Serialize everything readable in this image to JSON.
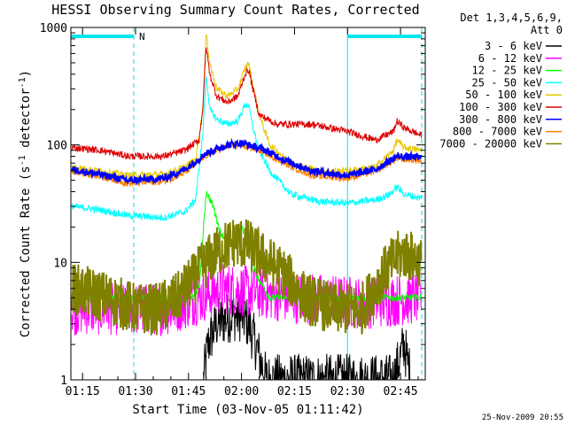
{
  "chart_data": {
    "type": "line",
    "title": "HESSI Observing Summary Count Rates, Corrected",
    "xlabel": "Start Time (03-Nov-05 01:11:42)",
    "ylabel_main": "Corrected Count Rate (s",
    "ylabel_sup1": "-1",
    "ylabel_mid": " detector",
    "ylabel_sup2": "-1",
    "ylabel_end": ")",
    "y_scale": "log",
    "ylim": [
      1,
      1000
    ],
    "xlim_minutes": [
      71.7,
      172
    ],
    "x_ticks": [
      {
        "m": 75,
        "label": "01:15"
      },
      {
        "m": 90,
        "label": "01:30"
      },
      {
        "m": 105,
        "label": "01:45"
      },
      {
        "m": 120,
        "label": "02:00"
      },
      {
        "m": 135,
        "label": "02:15"
      },
      {
        "m": 150,
        "label": "02:30"
      },
      {
        "m": 165,
        "label": "02:45"
      }
    ],
    "y_ticks": [
      {
        "v": 1,
        "label": "1"
      },
      {
        "v": 10,
        "label": "10"
      },
      {
        "v": 100,
        "label": "100"
      },
      {
        "v": 1000,
        "label": "1000"
      }
    ],
    "legend_header": [
      "Det 1,3,4,5,6,9,",
      "Att 0"
    ],
    "legend_placement": "right",
    "timestamp": "25-Nov-2009 20:55",
    "bar_marker": "N",
    "night_intervals": [
      [
        71.7,
        89.5
      ],
      [
        150.0,
        171.0
      ]
    ],
    "series": [
      {
        "name": "3 - 6 keV",
        "color": "#000000",
        "points": [
          [
            109.2,
            1
          ],
          [
            110.5,
            2
          ],
          [
            113,
            3
          ],
          [
            117,
            3.5
          ],
          [
            120,
            3.5
          ],
          [
            122,
            3
          ],
          [
            124,
            2
          ],
          [
            127,
            1
          ],
          [
            163,
            1
          ],
          [
            166,
            2
          ],
          [
            168,
            1
          ]
        ]
      },
      {
        "name": "6 - 12 keV",
        "color": "#ff00ff",
        "points": [
          [
            72,
            4
          ],
          [
            90,
            4
          ],
          [
            100,
            4
          ],
          [
            108,
            5
          ],
          [
            115,
            6
          ],
          [
            125,
            5.5
          ],
          [
            135,
            5
          ],
          [
            155,
            4.5
          ],
          [
            171,
            5
          ]
        ]
      },
      {
        "name": "12 - 25 keV",
        "color": "#00ff00",
        "points": [
          [
            72,
            5
          ],
          [
            90,
            5
          ],
          [
            100,
            5
          ],
          [
            106,
            5
          ],
          [
            108,
            6
          ],
          [
            110,
            40
          ],
          [
            112,
            30
          ],
          [
            114,
            18
          ],
          [
            117,
            14
          ],
          [
            120,
            20
          ],
          [
            122,
            16
          ],
          [
            124,
            8
          ],
          [
            128,
            5
          ],
          [
            150,
            5
          ],
          [
            171,
            5
          ]
        ]
      },
      {
        "name": "25 - 50 keV",
        "color": "#00ffff",
        "points": [
          [
            72,
            30
          ],
          [
            80,
            28
          ],
          [
            88,
            25
          ],
          [
            98,
            24
          ],
          [
            104,
            27
          ],
          [
            107,
            34
          ],
          [
            109,
            120
          ],
          [
            110,
            400
          ],
          [
            111,
            200
          ],
          [
            113,
            165
          ],
          [
            116,
            150
          ],
          [
            119,
            160
          ],
          [
            121,
            220
          ],
          [
            122,
            220
          ],
          [
            123,
            150
          ],
          [
            125,
            90
          ],
          [
            128,
            60
          ],
          [
            134,
            38
          ],
          [
            142,
            33
          ],
          [
            150,
            32
          ],
          [
            158,
            34
          ],
          [
            162,
            38
          ],
          [
            164,
            44
          ],
          [
            166,
            38
          ],
          [
            171,
            35
          ]
        ]
      },
      {
        "name": "50 - 100 keV",
        "color": "#e8c800",
        "points": [
          [
            72,
            65
          ],
          [
            80,
            60
          ],
          [
            88,
            55
          ],
          [
            98,
            56
          ],
          [
            104,
            65
          ],
          [
            107,
            75
          ],
          [
            109,
            200
          ],
          [
            110,
            900
          ],
          [
            111,
            500
          ],
          [
            113,
            300
          ],
          [
            116,
            260
          ],
          [
            119,
            300
          ],
          [
            121,
            450
          ],
          [
            122,
            500
          ],
          [
            123,
            350
          ],
          [
            125,
            180
          ],
          [
            128,
            100
          ],
          [
            134,
            70
          ],
          [
            142,
            60
          ],
          [
            150,
            60
          ],
          [
            158,
            65
          ],
          [
            163,
            90
          ],
          [
            164,
            110
          ],
          [
            166,
            95
          ],
          [
            171,
            90
          ]
        ]
      },
      {
        "name": "100 - 300 keV",
        "color": "#dd0000",
        "points": [
          [
            72,
            95
          ],
          [
            80,
            90
          ],
          [
            88,
            80
          ],
          [
            98,
            80
          ],
          [
            104,
            90
          ],
          [
            108,
            110
          ],
          [
            109,
            200
          ],
          [
            110,
            700
          ],
          [
            111,
            400
          ],
          [
            113,
            260
          ],
          [
            116,
            230
          ],
          [
            119,
            260
          ],
          [
            121,
            400
          ],
          [
            122,
            440
          ],
          [
            123,
            320
          ],
          [
            125,
            180
          ],
          [
            130,
            150
          ],
          [
            140,
            150
          ],
          [
            150,
            130
          ],
          [
            158,
            110
          ],
          [
            163,
            130
          ],
          [
            164,
            160
          ],
          [
            166,
            140
          ],
          [
            171,
            120
          ]
        ]
      },
      {
        "name": "300 - 800 keV",
        "color": "#0000ff",
        "points": [
          [
            72,
            62
          ],
          [
            80,
            56
          ],
          [
            88,
            50
          ],
          [
            98,
            52
          ],
          [
            104,
            62
          ],
          [
            110,
            85
          ],
          [
            116,
            100
          ],
          [
            120,
            104
          ],
          [
            126,
            92
          ],
          [
            132,
            75
          ],
          [
            140,
            60
          ],
          [
            150,
            55
          ],
          [
            158,
            62
          ],
          [
            164,
            80
          ],
          [
            171,
            78
          ]
        ]
      },
      {
        "name": "800 - 7000 keV",
        "color": "#ff8000",
        "points": [
          [
            72,
            60
          ],
          [
            80,
            54
          ],
          [
            88,
            47
          ],
          [
            98,
            49
          ],
          [
            104,
            58
          ],
          [
            110,
            82
          ],
          [
            116,
            98
          ],
          [
            120,
            100
          ],
          [
            126,
            88
          ],
          [
            132,
            70
          ],
          [
            140,
            55
          ],
          [
            150,
            52
          ],
          [
            158,
            60
          ],
          [
            164,
            76
          ],
          [
            171,
            74
          ]
        ]
      },
      {
        "name": "7000 - 20000 keV",
        "color": "#808000",
        "points": [
          [
            72,
            6
          ],
          [
            82,
            5
          ],
          [
            90,
            4
          ],
          [
            96,
            4
          ],
          [
            102,
            5
          ],
          [
            106,
            7
          ],
          [
            110,
            10
          ],
          [
            114,
            13
          ],
          [
            118,
            15
          ],
          [
            122,
            14
          ],
          [
            126,
            11
          ],
          [
            132,
            8
          ],
          [
            138,
            5
          ],
          [
            146,
            4
          ],
          [
            154,
            4
          ],
          [
            160,
            8
          ],
          [
            164,
            11
          ],
          [
            166,
            12
          ],
          [
            171,
            10
          ]
        ]
      }
    ]
  }
}
